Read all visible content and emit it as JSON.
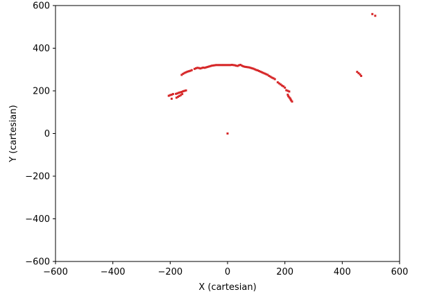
{
  "chart_data": {
    "type": "scatter",
    "title": "",
    "xlabel": "X (cartesian)",
    "ylabel": "Y (cartesian)",
    "xlim": [
      -600,
      600
    ],
    "ylim": [
      -600,
      600
    ],
    "xticks": [
      -600,
      -400,
      -200,
      0,
      200,
      400,
      600
    ],
    "yticks": [
      -600,
      -400,
      -200,
      0,
      200,
      400,
      600
    ],
    "xtick_labels": [
      "−600",
      "−400",
      "−200",
      "0",
      "200",
      "400",
      "600"
    ],
    "ytick_labels": [
      "−600",
      "−400",
      "−200",
      "0",
      "200",
      "400",
      "600"
    ],
    "grid": false,
    "marker_color": "#d62728",
    "series": [
      {
        "points": [
          [
            0,
            0
          ],
          [
            -205,
            177
          ],
          [
            -200,
            180
          ],
          [
            -195,
            182
          ],
          [
            -190,
            185
          ],
          [
            -195,
            163
          ],
          [
            -180,
            186
          ],
          [
            -175,
            188
          ],
          [
            -170,
            191
          ],
          [
            -165,
            193
          ],
          [
            -160,
            195
          ],
          [
            -155,
            198
          ],
          [
            -150,
            200
          ],
          [
            -145,
            202
          ],
          [
            -178,
            168
          ],
          [
            -173,
            172
          ],
          [
            -168,
            176
          ],
          [
            -163,
            180
          ],
          [
            -158,
            185
          ],
          [
            -160,
            275
          ],
          [
            -155,
            280
          ],
          [
            -150,
            284
          ],
          [
            -145,
            287
          ],
          [
            -140,
            290
          ],
          [
            -135,
            292
          ],
          [
            -130,
            294
          ],
          [
            -125,
            297
          ],
          [
            -115,
            303
          ],
          [
            -110,
            306
          ],
          [
            -105,
            308
          ],
          [
            -100,
            307
          ],
          [
            -95,
            305
          ],
          [
            -90,
            307
          ],
          [
            -85,
            309
          ],
          [
            -80,
            308
          ],
          [
            -75,
            310
          ],
          [
            -70,
            312
          ],
          [
            -65,
            314
          ],
          [
            -60,
            316
          ],
          [
            -55,
            318
          ],
          [
            -50,
            319
          ],
          [
            -45,
            320
          ],
          [
            -40,
            321
          ],
          [
            -35,
            321
          ],
          [
            -30,
            321
          ],
          [
            -25,
            321
          ],
          [
            -20,
            321
          ],
          [
            -15,
            321
          ],
          [
            -10,
            321
          ],
          [
            -5,
            321
          ],
          [
            0,
            321
          ],
          [
            5,
            321
          ],
          [
            10,
            321
          ],
          [
            15,
            322
          ],
          [
            20,
            321
          ],
          [
            25,
            320
          ],
          [
            30,
            318
          ],
          [
            35,
            317
          ],
          [
            40,
            320
          ],
          [
            45,
            322
          ],
          [
            50,
            318
          ],
          [
            55,
            315
          ],
          [
            60,
            313
          ],
          [
            65,
            312
          ],
          [
            70,
            311
          ],
          [
            75,
            310
          ],
          [
            80,
            308
          ],
          [
            85,
            306
          ],
          [
            90,
            304
          ],
          [
            95,
            301
          ],
          [
            100,
            298
          ],
          [
            105,
            296
          ],
          [
            110,
            293
          ],
          [
            115,
            290
          ],
          [
            120,
            287
          ],
          [
            125,
            284
          ],
          [
            130,
            281
          ],
          [
            135,
            278
          ],
          [
            140,
            275
          ],
          [
            145,
            270
          ],
          [
            150,
            266
          ],
          [
            155,
            262
          ],
          [
            160,
            259
          ],
          [
            165,
            255
          ],
          [
            175,
            240
          ],
          [
            180,
            235
          ],
          [
            185,
            230
          ],
          [
            190,
            225
          ],
          [
            195,
            221
          ],
          [
            200,
            215
          ],
          [
            205,
            203
          ],
          [
            210,
            200
          ],
          [
            215,
            197
          ],
          [
            210,
            182
          ],
          [
            212,
            175
          ],
          [
            215,
            170
          ],
          [
            218,
            165
          ],
          [
            220,
            160
          ],
          [
            222,
            155
          ],
          [
            225,
            150
          ],
          [
            452,
            289
          ],
          [
            457,
            283
          ],
          [
            462,
            277
          ],
          [
            466,
            270
          ],
          [
            505,
            560
          ],
          [
            515,
            552
          ]
        ]
      }
    ]
  }
}
